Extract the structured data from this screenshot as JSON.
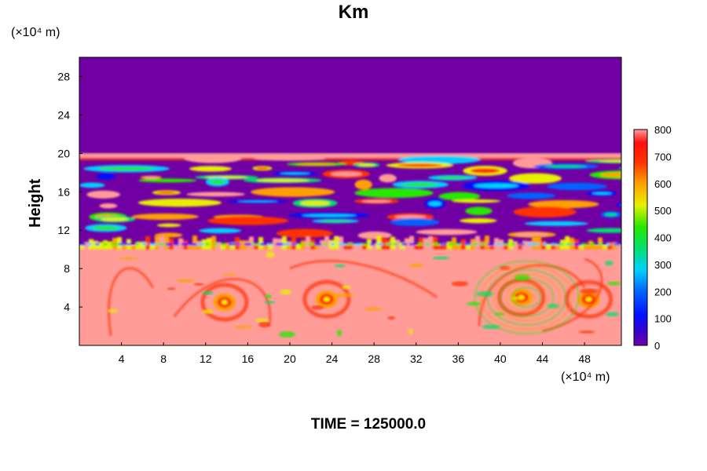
{
  "chart_data": {
    "type": "heatmap",
    "title": "Km",
    "ylabel": "Height",
    "x_unit": "(×10⁴ m)",
    "y_unit": "(×10⁴ m)",
    "xlim": [
      0,
      51.5
    ],
    "ylim": [
      0,
      30
    ],
    "x_ticks": [
      "4",
      "8",
      "12",
      "16",
      "20",
      "24",
      "28",
      "32",
      "36",
      "40",
      "44",
      "48"
    ],
    "y_ticks": [
      "4",
      "8",
      "12",
      "16",
      "20",
      "24",
      "28"
    ],
    "colorbar": {
      "min": 0,
      "max": 800,
      "labels": [
        "0",
        "100",
        "200",
        "300",
        "400",
        "500",
        "600",
        "700",
        "800"
      ]
    },
    "footer": "TIME = 125000.0",
    "regions": [
      {
        "band": "upper",
        "y_from": 20,
        "y_to": 30,
        "value": 0
      },
      {
        "band": "middle",
        "y_from": 10.5,
        "y_to": 20,
        "value": 0,
        "note": "filaments up to 800"
      },
      {
        "band": "lower",
        "y_from": 0,
        "y_to": 10.5,
        "value": 800
      }
    ],
    "eddies": [
      {
        "x": 13.8,
        "y": 4.5
      },
      {
        "x": 23.5,
        "y": 4.8
      },
      {
        "x": 42,
        "y": 5
      },
      {
        "x": 48.4,
        "y": 4.8
      }
    ]
  },
  "colors": {
    "low": "#7000a4",
    "high": "#ff9c98"
  }
}
